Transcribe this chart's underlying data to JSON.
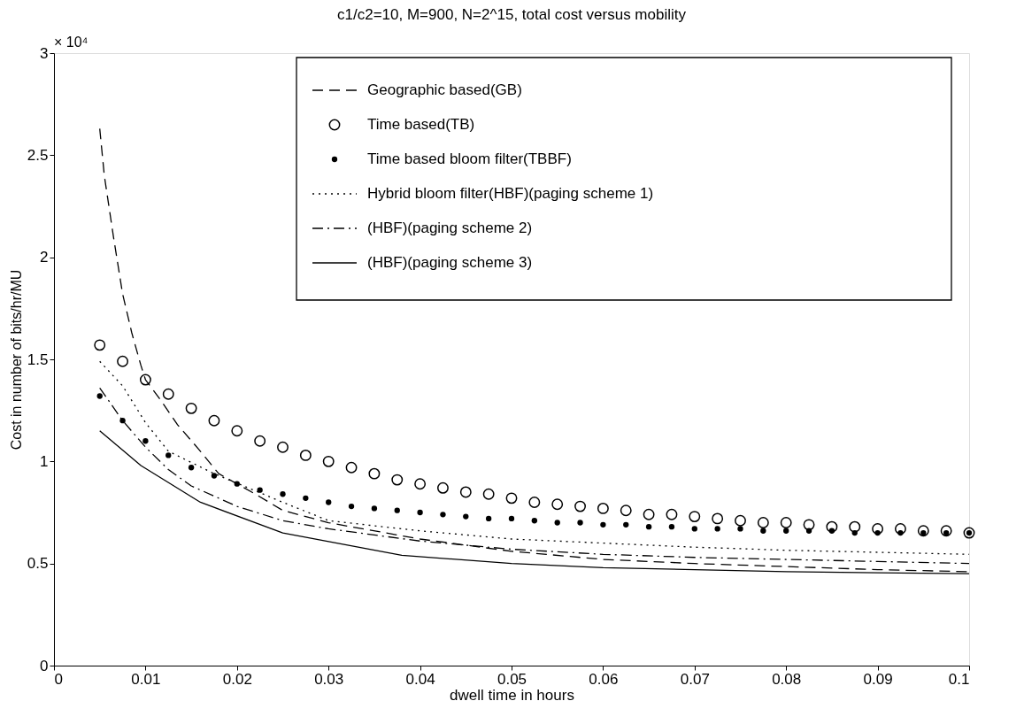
{
  "chart_data": {
    "type": "line",
    "title": "c1/c2=10, M=900, N=2^15, total cost versus mobility",
    "xlabel": "dwell time in hours",
    "ylabel": "Cost in number of bits/hr/MU",
    "annotations": [
      "× 10⁴"
    ],
    "xlim": [
      0,
      0.1
    ],
    "xticks": [
      0,
      0.01,
      0.02,
      0.03,
      0.04,
      0.05,
      0.06,
      0.07,
      0.08,
      0.09,
      0.1
    ],
    "ylim": [
      0,
      3
    ],
    "yticks": [
      0,
      0.5,
      1,
      1.5,
      2,
      2.5,
      3
    ],
    "grid": false,
    "legend": "top right",
    "series": [
      {
        "name": "Geographic based(GB)",
        "line_style": "dashed",
        "color": "#000000",
        "x": [
          0.005,
          0.0055,
          0.0065,
          0.0075,
          0.0085,
          0.0095,
          0.01,
          0.0115,
          0.0135,
          0.016,
          0.018,
          0.022,
          0.025,
          0.03,
          0.04,
          0.05,
          0.06,
          0.07,
          0.08,
          0.09,
          0.1
        ],
        "values": [
          2.63,
          2.4,
          2.1,
          1.82,
          1.63,
          1.47,
          1.4,
          1.31,
          1.18,
          1.05,
          0.94,
          0.84,
          0.76,
          0.7,
          0.62,
          0.56,
          0.52,
          0.5,
          0.485,
          0.47,
          0.46
        ]
      },
      {
        "name": "Time based(TB)",
        "type": "scatter",
        "marker": "circle",
        "color": "#000000",
        "x": [
          0.005,
          0.0075,
          0.01,
          0.0125,
          0.015,
          0.0175,
          0.02,
          0.0225,
          0.025,
          0.0275,
          0.03,
          0.0325,
          0.035,
          0.0375,
          0.04,
          0.0425,
          0.045,
          0.0475,
          0.05,
          0.0525,
          0.055,
          0.0575,
          0.06,
          0.0625,
          0.065,
          0.0675,
          0.07,
          0.0725,
          0.075,
          0.0775,
          0.08,
          0.0825,
          0.085,
          0.0875,
          0.09,
          0.0925,
          0.095,
          0.0975,
          0.1
        ],
        "values": [
          1.57,
          1.49,
          1.4,
          1.33,
          1.26,
          1.2,
          1.15,
          1.1,
          1.07,
          1.03,
          1.0,
          0.97,
          0.94,
          0.91,
          0.89,
          0.87,
          0.85,
          0.84,
          0.82,
          0.8,
          0.79,
          0.78,
          0.77,
          0.76,
          0.74,
          0.74,
          0.73,
          0.72,
          0.71,
          0.7,
          0.7,
          0.69,
          0.68,
          0.68,
          0.67,
          0.67,
          0.66,
          0.66,
          0.65
        ]
      },
      {
        "name": "Time based bloom filter(TBBF)",
        "type": "scatter",
        "color": "#000000",
        "x": [
          0.005,
          0.0075,
          0.01,
          0.0125,
          0.015,
          0.0175,
          0.02,
          0.0225,
          0.025,
          0.0275,
          0.03,
          0.0325,
          0.035,
          0.0375,
          0.04,
          0.0425,
          0.045,
          0.0475,
          0.05,
          0.0525,
          0.055,
          0.0575,
          0.06,
          0.0625,
          0.065,
          0.0675,
          0.07,
          0.0725,
          0.075,
          0.0775,
          0.08,
          0.0825,
          0.085,
          0.0875,
          0.09,
          0.0925,
          0.095,
          0.0975,
          0.1
        ],
        "values": [
          1.32,
          1.2,
          1.1,
          1.03,
          0.97,
          0.93,
          0.89,
          0.86,
          0.84,
          0.82,
          0.8,
          0.78,
          0.77,
          0.76,
          0.75,
          0.74,
          0.73,
          0.72,
          0.72,
          0.71,
          0.7,
          0.7,
          0.69,
          0.69,
          0.68,
          0.68,
          0.67,
          0.67,
          0.67,
          0.66,
          0.66,
          0.66,
          0.66,
          0.65,
          0.65,
          0.65,
          0.65,
          0.65,
          0.65
        ]
      },
      {
        "name": "Hybrid bloom filter(HBF)(paging scheme 1)",
        "line_style": "dotted",
        "color": "#000000",
        "x": [
          0.005,
          0.0075,
          0.01,
          0.0125,
          0.0175,
          0.025,
          0.03,
          0.04,
          0.05,
          0.06,
          0.07,
          0.08,
          0.09,
          0.1
        ],
        "values": [
          1.49,
          1.37,
          1.19,
          1.05,
          0.94,
          0.8,
          0.71,
          0.66,
          0.62,
          0.6,
          0.58,
          0.565,
          0.555,
          0.545
        ]
      },
      {
        "name": "(HBF)(paging scheme 2)",
        "line_style": "dashdot",
        "color": "#000000",
        "x": [
          0.005,
          0.0075,
          0.01,
          0.0125,
          0.015,
          0.02,
          0.025,
          0.03,
          0.04,
          0.05,
          0.06,
          0.07,
          0.08,
          0.09,
          0.1
        ],
        "values": [
          1.36,
          1.2,
          1.07,
          0.96,
          0.88,
          0.78,
          0.71,
          0.67,
          0.61,
          0.57,
          0.545,
          0.53,
          0.52,
          0.51,
          0.5
        ]
      },
      {
        "name": "(HBF)(paging scheme 3)",
        "line_style": "solid",
        "color": "#000000",
        "x": [
          0.005,
          0.0095,
          0.016,
          0.025,
          0.038,
          0.05,
          0.06,
          0.07,
          0.08,
          0.09,
          0.1
        ],
        "values": [
          1.15,
          0.98,
          0.8,
          0.65,
          0.54,
          0.5,
          0.48,
          0.47,
          0.46,
          0.455,
          0.45
        ]
      }
    ]
  }
}
